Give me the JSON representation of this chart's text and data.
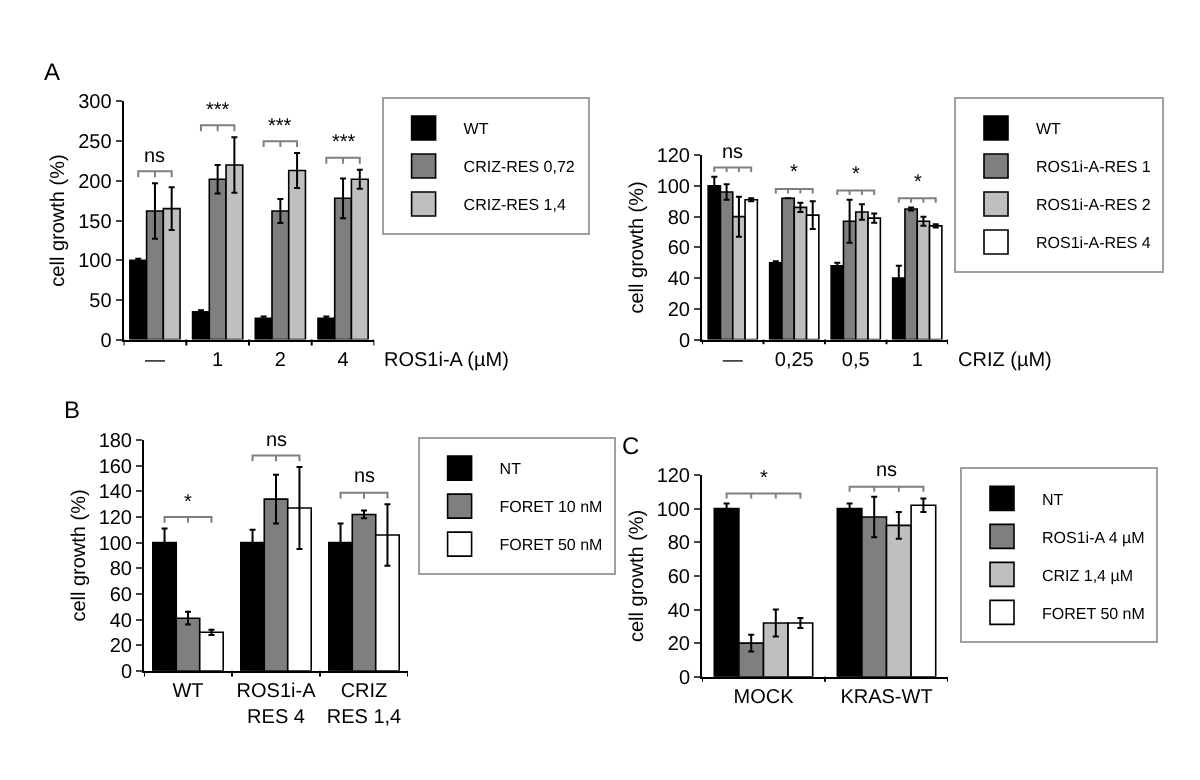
{
  "chart_data": [
    {
      "type": "bar",
      "title": "A",
      "ylabel": "cell growth (%)",
      "xlabel": "ROS1i-A (µM)",
      "categories": [
        "—",
        "1",
        "2",
        "4"
      ],
      "series": [
        {
          "name": "WT",
          "color": "#000000",
          "values": [
            100,
            35,
            27,
            27
          ],
          "errors": [
            2,
            2,
            2,
            2
          ]
        },
        {
          "name": "CRIZ-RES 0,72",
          "color": "#7f7f7f",
          "values": [
            162,
            202,
            162,
            178
          ],
          "errors": [
            35,
            18,
            15,
            25
          ]
        },
        {
          "name": "CRIZ-RES 1,4",
          "color": "#bfbfbf",
          "values": [
            165,
            220,
            213,
            202
          ],
          "errors": [
            27,
            35,
            22,
            12
          ]
        }
      ],
      "annotations": [
        "ns",
        "***",
        "***",
        "***"
      ],
      "ylim": [
        0,
        300
      ],
      "yticks": [
        0,
        50,
        100,
        150,
        200,
        250,
        300
      ],
      "legend": "top right"
    },
    {
      "type": "bar",
      "ylabel": "cell growth (%)",
      "xlabel": "CRIZ (µM)",
      "categories": [
        "—",
        "0,25",
        "0,5",
        "1"
      ],
      "series": [
        {
          "name": "WT",
          "color": "#000000",
          "values": [
            100,
            50,
            48,
            40
          ],
          "errors": [
            6,
            1,
            2,
            8
          ]
        },
        {
          "name": "ROS1i-A-RES 1",
          "color": "#7f7f7f",
          "values": [
            96,
            92,
            77,
            85
          ],
          "errors": [
            5,
            0,
            14,
            1
          ]
        },
        {
          "name": "ROS1i-A-RES 2",
          "color": "#bfbfbf",
          "values": [
            80,
            86,
            83,
            77
          ],
          "errors": [
            13,
            3,
            5,
            3
          ]
        },
        {
          "name": "ROS1i-A-RES 4",
          "color": "#ffffff",
          "values": [
            91,
            81,
            79,
            74
          ],
          "errors": [
            1,
            9,
            3,
            1
          ]
        }
      ],
      "annotations": [
        "ns",
        "*",
        "*",
        "*"
      ],
      "ylim": [
        0,
        120
      ],
      "yticks": [
        0,
        20,
        40,
        60,
        80,
        100,
        120
      ],
      "legend": "top right"
    },
    {
      "type": "bar",
      "title": "B",
      "ylabel": "cell growth (%)",
      "categories": [
        "WT",
        "ROS1i-A\nRES 4",
        "CRIZ\nRES 1,4"
      ],
      "series": [
        {
          "name": "NT",
          "color": "#000000",
          "values": [
            100,
            100,
            100
          ],
          "errors": [
            11,
            10,
            15
          ]
        },
        {
          "name": "FORET 10 nM",
          "color": "#7f7f7f",
          "values": [
            41,
            134,
            122
          ],
          "errors": [
            5,
            19,
            3
          ]
        },
        {
          "name": "FORET 50 nM",
          "color": "#ffffff",
          "values": [
            30,
            127,
            106
          ],
          "errors": [
            2,
            32,
            24
          ]
        }
      ],
      "annotations": [
        "*",
        "ns",
        "ns"
      ],
      "ylim": [
        0,
        180
      ],
      "yticks": [
        0,
        20,
        40,
        60,
        80,
        100,
        120,
        140,
        160,
        180
      ],
      "legend": "top right"
    },
    {
      "type": "bar",
      "title": "C",
      "ylabel": "cell growth (%)",
      "categories": [
        "MOCK",
        "KRAS-WT"
      ],
      "series": [
        {
          "name": "NT",
          "color": "#000000",
          "values": [
            100,
            100
          ],
          "errors": [
            3,
            3
          ]
        },
        {
          "name": "ROS1i-A 4 µM",
          "color": "#7f7f7f",
          "values": [
            20,
            95
          ],
          "errors": [
            5,
            12
          ]
        },
        {
          "name": "CRIZ 1,4 µM",
          "color": "#bfbfbf",
          "values": [
            32,
            90
          ],
          "errors": [
            8,
            8
          ]
        },
        {
          "name": "FORET 50 nM",
          "color": "#ffffff",
          "values": [
            32,
            102
          ],
          "errors": [
            3,
            4
          ]
        }
      ],
      "annotations": [
        "*",
        "ns"
      ],
      "ylim": [
        0,
        120
      ],
      "yticks": [
        0,
        20,
        40,
        60,
        80,
        100,
        120
      ],
      "legend": "top right"
    }
  ]
}
